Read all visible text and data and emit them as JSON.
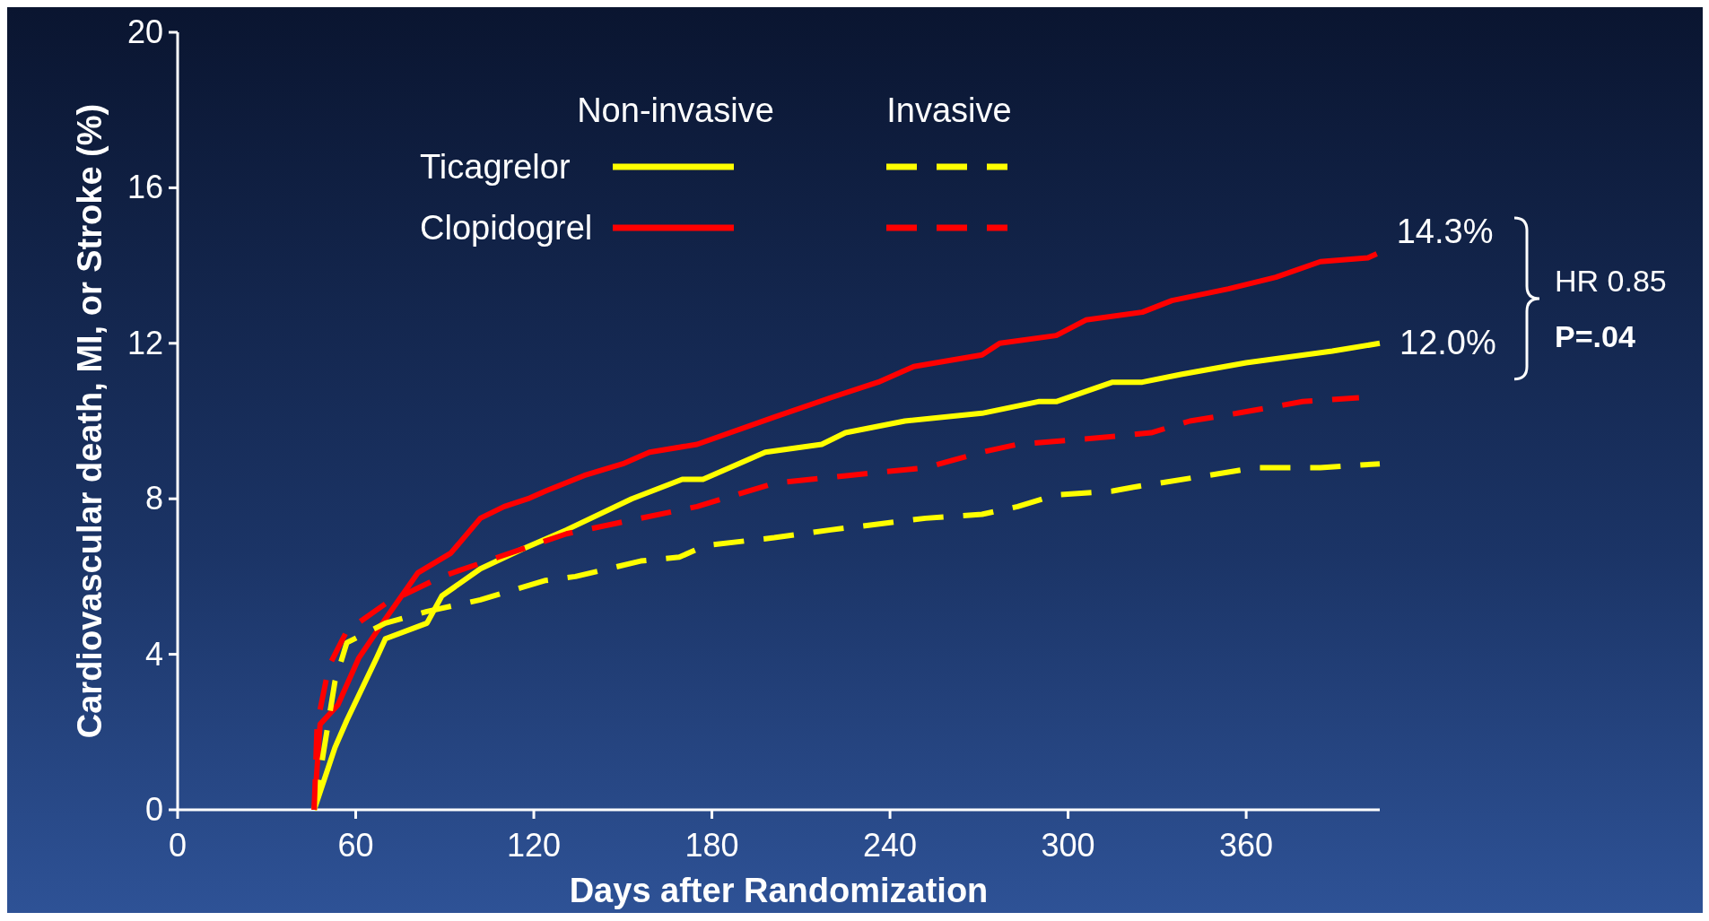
{
  "chart_data": {
    "type": "line",
    "xlabel": "Days after Randomization",
    "ylabel": "Cardiovascular death, MI, or Stroke (%)",
    "xlim": [
      0,
      405
    ],
    "ylim": [
      0,
      20
    ],
    "xticks": [
      0,
      60,
      120,
      180,
      240,
      300,
      360
    ],
    "yticks": [
      0,
      4,
      8,
      12,
      16,
      20
    ],
    "grid": false,
    "legend": "top left",
    "marker": "none",
    "series": [
      {
        "name": "Ticagrelor",
        "color": "#ffff00",
        "line_style": "solid",
        "x": [
          46,
          53,
          57,
          67,
          70,
          84,
          89,
          102,
          116,
          131,
          153,
          170,
          177,
          198,
          217,
          225,
          245,
          271,
          290,
          296,
          315,
          325,
          338,
          360,
          389,
          405
        ],
        "values": [
          0,
          1.6,
          2.3,
          3.9,
          4.4,
          4.8,
          5.5,
          6.2,
          6.7,
          7.2,
          8.0,
          8.5,
          8.5,
          9.2,
          9.4,
          9.7,
          10.0,
          10.2,
          10.5,
          10.5,
          11.0,
          11.0,
          11.2,
          11.5,
          11.8,
          12.0
        ]
      },
      {
        "name": "Clopidogrel",
        "color": "#ff0000",
        "line_style": "solid",
        "x": [
          46,
          48,
          54,
          61,
          69,
          81,
          92,
          102,
          110,
          118,
          124,
          137,
          150,
          159,
          175,
          201,
          220,
          236,
          248,
          271,
          277,
          296,
          306,
          325,
          335,
          354,
          370,
          385,
          401,
          404
        ],
        "values": [
          0,
          2.2,
          2.7,
          3.9,
          4.8,
          6.1,
          6.6,
          7.5,
          7.8,
          8.0,
          8.2,
          8.6,
          8.9,
          9.2,
          9.4,
          10.1,
          10.6,
          11.0,
          11.4,
          11.7,
          12.0,
          12.2,
          12.6,
          12.8,
          13.1,
          13.4,
          13.7,
          14.1,
          14.2,
          14.3
        ]
      },
      {
        "color": "#ffff00",
        "line_style": "dashed",
        "x": [
          46,
          53,
          57,
          70,
          84,
          102,
          124,
          134,
          156,
          169,
          178,
          201,
          220,
          252,
          271,
          283,
          296,
          315,
          322,
          347,
          363,
          373,
          385,
          405
        ],
        "values": [
          0,
          3.3,
          4.3,
          4.8,
          5.1,
          5.4,
          5.9,
          6.0,
          6.4,
          6.5,
          6.8,
          7.0,
          7.2,
          7.5,
          7.6,
          7.8,
          8.1,
          8.2,
          8.3,
          8.6,
          8.8,
          8.8,
          8.8,
          8.9
        ]
      },
      {
        "color": "#ff0000",
        "line_style": "dashed",
        "x": [
          46,
          47,
          51,
          57,
          70,
          89,
          108,
          131,
          156,
          175,
          201,
          226,
          252,
          271,
          283,
          315,
          328,
          341,
          357,
          379,
          398
        ],
        "values": [
          0,
          2.2,
          3.7,
          4.6,
          5.3,
          6.0,
          6.5,
          7.1,
          7.5,
          7.8,
          8.4,
          8.6,
          8.8,
          9.2,
          9.4,
          9.6,
          9.7,
          10.0,
          10.2,
          10.5,
          10.6
        ]
      }
    ],
    "annotations": [
      "Non-invasive",
      "Invasive",
      {
        "text": "14.3%",
        "x": 404,
        "y": 14.3
      },
      {
        "text": "12.0%",
        "x": 405,
        "y": 12.0
      },
      "HR 0.85",
      "P=.04"
    ]
  }
}
